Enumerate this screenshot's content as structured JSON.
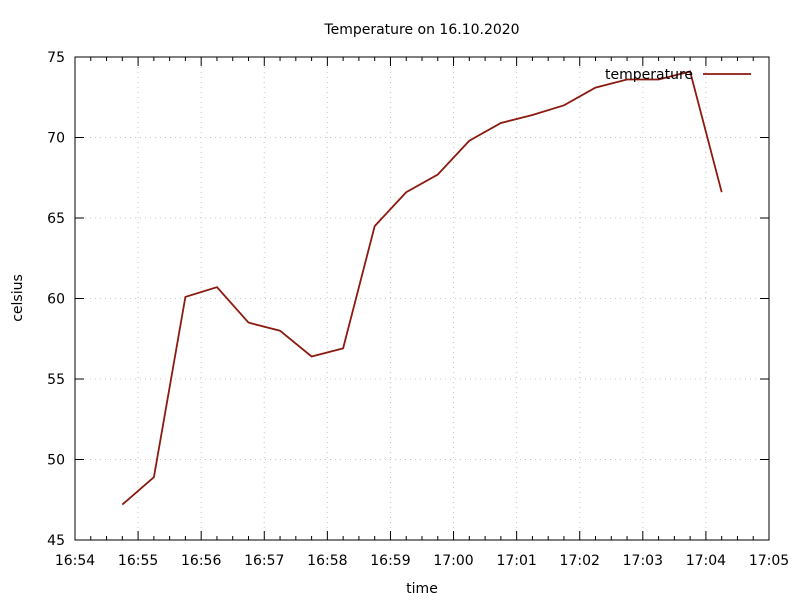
{
  "chart_data": {
    "type": "line",
    "title": "Temperature on 16.10.2020",
    "xlabel": "time",
    "ylabel": "celsius",
    "xlim": [
      "16:54",
      "17:05"
    ],
    "ylim": [
      45,
      75
    ],
    "x_ticks": [
      "16:54",
      "16:55",
      "16:56",
      "16:57",
      "16:58",
      "16:59",
      "17:00",
      "17:01",
      "17:02",
      "17:03",
      "17:04",
      "17:05"
    ],
    "y_ticks": [
      45,
      50,
      55,
      60,
      65,
      70,
      75
    ],
    "grid": true,
    "legend_position": "top-right",
    "series": [
      {
        "name": "temperature",
        "color": "#8b1a10",
        "x": [
          "16:54:45",
          "16:55:15",
          "16:55:45",
          "16:56:15",
          "16:56:45",
          "16:57:15",
          "16:57:45",
          "16:58:15",
          "16:58:45",
          "16:59:15",
          "16:59:45",
          "17:00:15",
          "17:00:45",
          "17:01:15",
          "17:01:45",
          "17:02:15",
          "17:02:45",
          "17:03:15",
          "17:03:45",
          "17:04:15"
        ],
        "y": [
          47.2,
          48.9,
          60.1,
          60.7,
          58.5,
          58.0,
          56.4,
          56.9,
          64.5,
          66.6,
          67.7,
          69.8,
          70.9,
          71.4,
          72.0,
          73.1,
          73.6,
          73.6,
          74.1,
          66.6
        ]
      }
    ]
  }
}
